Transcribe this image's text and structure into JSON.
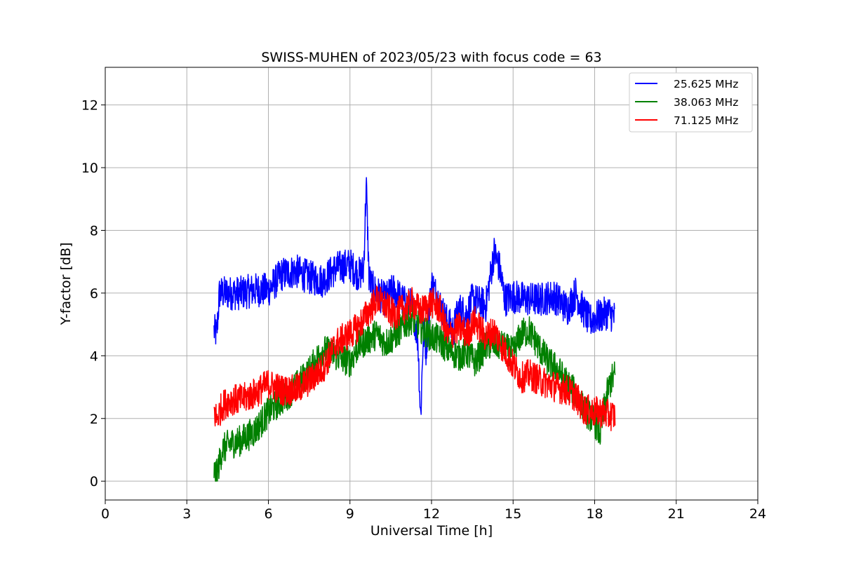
{
  "chart_data": {
    "type": "line",
    "title": "SWISS-MUHEN of 2023/05/23 with focus code = 63",
    "xlabel": "Universal Time [h]",
    "ylabel": "Y-factor [dB]",
    "xlim": [
      0,
      24
    ],
    "ylim": [
      -0.6,
      13.2
    ],
    "xticks": [
      0,
      3,
      6,
      9,
      12,
      15,
      18,
      21,
      24
    ],
    "yticks": [
      0,
      2,
      4,
      6,
      8,
      10,
      12
    ],
    "grid": true,
    "legend_position": "top-right",
    "series": [
      {
        "name": "25.625 MHz",
        "color": "#0000ff",
        "x": [
          4.0,
          4.1,
          4.2,
          4.5,
          5.0,
          5.5,
          6.0,
          6.5,
          7.0,
          7.5,
          8.0,
          8.5,
          9.0,
          9.3,
          9.5,
          9.6,
          9.7,
          9.8,
          10.0,
          10.3,
          10.6,
          11.0,
          11.3,
          11.5,
          11.6,
          11.7,
          11.8,
          12.0,
          12.2,
          12.5,
          12.8,
          13.0,
          13.3,
          13.5,
          14.0,
          14.3,
          14.5,
          14.7,
          15.0,
          15.5,
          16.0,
          16.5,
          17.0,
          17.3,
          17.5,
          17.8,
          18.0,
          18.3,
          18.5,
          18.75
        ],
        "y": [
          4.8,
          4.7,
          6.0,
          6.0,
          6.0,
          6.1,
          6.1,
          6.6,
          6.7,
          6.5,
          6.4,
          6.8,
          6.9,
          6.6,
          6.7,
          9.5,
          6.5,
          6.2,
          6.0,
          5.8,
          6.1,
          5.7,
          5.6,
          4.5,
          2.0,
          4.8,
          4.2,
          6.3,
          5.9,
          5.2,
          4.8,
          5.5,
          5.3,
          5.8,
          5.6,
          7.3,
          6.8,
          5.8,
          5.9,
          5.8,
          5.8,
          5.9,
          5.5,
          6.0,
          5.6,
          5.1,
          5.2,
          5.3,
          5.4,
          5.2
        ]
      },
      {
        "name": "38.063 MHz",
        "color": "#008000",
        "x": [
          4.0,
          4.1,
          4.3,
          4.6,
          5.0,
          5.5,
          6.0,
          6.5,
          7.0,
          7.5,
          8.0,
          8.5,
          9.0,
          9.3,
          9.6,
          10.0,
          10.3,
          10.6,
          11.0,
          11.3,
          11.6,
          12.0,
          12.3,
          12.6,
          13.0,
          13.3,
          13.6,
          14.0,
          14.3,
          14.6,
          15.0,
          15.3,
          15.6,
          16.0,
          16.3,
          16.6,
          17.0,
          17.3,
          17.6,
          18.0,
          18.2,
          18.4,
          18.6,
          18.75
        ],
        "y": [
          0.3,
          0.2,
          1.0,
          1.2,
          1.3,
          1.6,
          2.2,
          2.6,
          3.0,
          3.5,
          4.2,
          4.0,
          3.8,
          4.3,
          4.5,
          4.7,
          4.4,
          4.6,
          5.0,
          5.2,
          4.9,
          4.6,
          4.5,
          4.2,
          4.0,
          4.1,
          3.8,
          4.3,
          4.4,
          4.3,
          4.1,
          4.7,
          4.8,
          4.2,
          3.8,
          3.6,
          3.1,
          2.8,
          2.3,
          1.9,
          1.5,
          2.6,
          3.2,
          3.4
        ]
      },
      {
        "name": "71.125 MHz",
        "color": "#ff0000",
        "x": [
          4.0,
          4.1,
          4.3,
          4.6,
          5.0,
          5.5,
          6.0,
          6.5,
          7.0,
          7.5,
          8.0,
          8.5,
          9.0,
          9.3,
          9.6,
          10.0,
          10.3,
          10.6,
          11.0,
          11.3,
          11.6,
          12.0,
          12.3,
          12.6,
          13.0,
          13.3,
          13.6,
          14.0,
          14.3,
          14.6,
          15.0,
          15.3,
          15.6,
          16.0,
          16.3,
          16.6,
          17.0,
          17.3,
          17.6,
          18.0,
          18.3,
          18.5,
          18.75
        ],
        "y": [
          2.2,
          2.0,
          2.4,
          2.6,
          2.6,
          2.8,
          3.1,
          2.9,
          2.9,
          3.2,
          3.6,
          4.4,
          4.7,
          4.9,
          5.3,
          5.8,
          5.6,
          5.3,
          5.5,
          5.7,
          5.4,
          5.7,
          5.5,
          4.6,
          4.9,
          4.7,
          5.1,
          4.6,
          4.8,
          4.3,
          3.7,
          3.3,
          3.4,
          3.2,
          3.1,
          3.0,
          2.9,
          2.7,
          2.3,
          2.2,
          2.2,
          2.1,
          2.1
        ]
      }
    ]
  }
}
